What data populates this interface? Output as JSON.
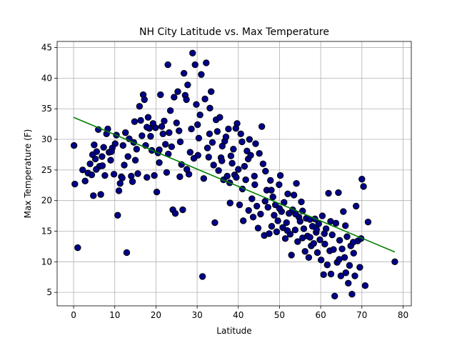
{
  "chart_data": {
    "type": "scatter",
    "title": "NH City Latitude vs. Max Temperature",
    "xlabel": "Latitude",
    "ylabel": "Max Temperature (F)",
    "xlim": [
      -4.0,
      82.0
    ],
    "ylim": [
      2.8,
      46.0
    ],
    "xticks": [
      0,
      10,
      20,
      30,
      40,
      50,
      60,
      70,
      80
    ],
    "yticks": [
      5,
      10,
      15,
      20,
      25,
      30,
      35,
      40,
      45
    ],
    "grid": true,
    "marker_color": "#00008b",
    "marker_edge": "#000000",
    "regression_color": "#008000",
    "regression": {
      "x": [
        0,
        78
      ],
      "y": [
        33.6,
        11.6
      ]
    },
    "points": [
      [
        0.1,
        29.0
      ],
      [
        0.3,
        22.7
      ],
      [
        1.0,
        12.3
      ],
      [
        2.2,
        25.0
      ],
      [
        2.8,
        23.2
      ],
      [
        3.5,
        24.5
      ],
      [
        4.0,
        26.0
      ],
      [
        4.4,
        24.2
      ],
      [
        4.6,
        27.5
      ],
      [
        4.8,
        20.8
      ],
      [
        5.0,
        29.1
      ],
      [
        5.3,
        26.8
      ],
      [
        5.6,
        28.0
      ],
      [
        6.0,
        31.6
      ],
      [
        6.3,
        25.6
      ],
      [
        6.6,
        21.0
      ],
      [
        6.9,
        27.2
      ],
      [
        7.3,
        28.7
      ],
      [
        7.6,
        24.1
      ],
      [
        8.0,
        30.9
      ],
      [
        8.3,
        31.7
      ],
      [
        8.6,
        27.9
      ],
      [
        9.0,
        26.6
      ],
      [
        9.4,
        28.6
      ],
      [
        9.8,
        24.3
      ],
      [
        10.1,
        29.3
      ],
      [
        10.4,
        30.7
      ],
      [
        10.7,
        17.6
      ],
      [
        11.0,
        21.6
      ],
      [
        11.3,
        22.8
      ],
      [
        11.6,
        23.9
      ],
      [
        12.0,
        29.0
      ],
      [
        12.3,
        25.8
      ],
      [
        12.6,
        31.1
      ],
      [
        12.9,
        11.5
      ],
      [
        13.2,
        27.2
      ],
      [
        13.5,
        30.1
      ],
      [
        14.0,
        24.0
      ],
      [
        14.3,
        23.1
      ],
      [
        14.6,
        29.5
      ],
      [
        15.0,
        26.6
      ],
      [
        15.3,
        28.4
      ],
      [
        15.6,
        24.4
      ],
      [
        16.0,
        35.4
      ],
      [
        16.3,
        33.1
      ],
      [
        16.6,
        30.6
      ],
      [
        16.9,
        37.3
      ],
      [
        17.2,
        36.5
      ],
      [
        17.5,
        29.0
      ],
      [
        17.8,
        23.8
      ],
      [
        18.1,
        33.6
      ],
      [
        18.4,
        31.8
      ],
      [
        18.7,
        30.5
      ],
      [
        19.0,
        28.2
      ],
      [
        19.3,
        32.6
      ],
      [
        19.6,
        24.1
      ],
      [
        19.9,
        31.9
      ],
      [
        20.2,
        21.4
      ],
      [
        20.5,
        27.8
      ],
      [
        20.8,
        28.3
      ],
      [
        21.1,
        37.3
      ],
      [
        21.4,
        32.1
      ],
      [
        21.7,
        30.9
      ],
      [
        22.0,
        33.0
      ],
      [
        22.3,
        29.2
      ],
      [
        22.6,
        24.6
      ],
      [
        22.9,
        42.2
      ],
      [
        23.2,
        31.1
      ],
      [
        23.5,
        34.7
      ],
      [
        23.8,
        28.8
      ],
      [
        24.1,
        18.5
      ],
      [
        24.4,
        36.9
      ],
      [
        24.7,
        17.9
      ],
      [
        25.0,
        32.7
      ],
      [
        25.3,
        37.8
      ],
      [
        25.6,
        31.4
      ],
      [
        25.9,
        29.6
      ],
      [
        26.2,
        25.9
      ],
      [
        26.5,
        18.5
      ],
      [
        26.8,
        40.8
      ],
      [
        27.1,
        37.2
      ],
      [
        27.4,
        36.5
      ],
      [
        27.7,
        38.9
      ],
      [
        28.0,
        24.3
      ],
      [
        28.3,
        27.9
      ],
      [
        28.6,
        31.7
      ],
      [
        28.9,
        44.1
      ],
      [
        29.2,
        26.9
      ],
      [
        29.5,
        42.2
      ],
      [
        29.8,
        35.7
      ],
      [
        30.1,
        32.4
      ],
      [
        30.4,
        30.2
      ],
      [
        30.7,
        34.0
      ],
      [
        31.0,
        40.6
      ],
      [
        31.3,
        7.6
      ],
      [
        31.6,
        23.6
      ],
      [
        31.9,
        36.6
      ],
      [
        32.2,
        42.5
      ],
      [
        32.5,
        28.6
      ],
      [
        32.8,
        27.1
      ],
      [
        33.1,
        35.1
      ],
      [
        33.4,
        37.8
      ],
      [
        33.7,
        29.5
      ],
      [
        34.0,
        25.8
      ],
      [
        34.3,
        16.4
      ],
      [
        34.6,
        33.2
      ],
      [
        34.9,
        31.3
      ],
      [
        35.2,
        24.9
      ],
      [
        35.5,
        33.6
      ],
      [
        35.8,
        27.0
      ],
      [
        36.1,
        28.9
      ],
      [
        36.4,
        23.4
      ],
      [
        36.7,
        29.7
      ],
      [
        37.0,
        30.4
      ],
      [
        37.3,
        24.0
      ],
      [
        37.6,
        31.7
      ],
      [
        37.9,
        22.9
      ],
      [
        38.2,
        27.3
      ],
      [
        38.5,
        26.1
      ],
      [
        38.8,
        28.4
      ],
      [
        39.1,
        24.2
      ],
      [
        39.4,
        31.8
      ],
      [
        39.7,
        32.6
      ],
      [
        40.0,
        25.1
      ],
      [
        40.3,
        19.3
      ],
      [
        40.6,
        30.9
      ],
      [
        40.9,
        29.6
      ],
      [
        41.2,
        16.7
      ],
      [
        41.5,
        25.6
      ],
      [
        41.8,
        23.4
      ],
      [
        42.1,
        28.1
      ],
      [
        42.4,
        26.8
      ],
      [
        42.7,
        30.0
      ],
      [
        43.0,
        27.4
      ],
      [
        43.3,
        20.3
      ],
      [
        43.6,
        17.3
      ],
      [
        43.9,
        24.0
      ],
      [
        44.2,
        29.3
      ],
      [
        44.5,
        19.1
      ],
      [
        44.8,
        15.5
      ],
      [
        45.1,
        27.7
      ],
      [
        45.4,
        17.8
      ],
      [
        45.7,
        32.1
      ],
      [
        46.0,
        26.0
      ],
      [
        46.3,
        14.3
      ],
      [
        46.6,
        24.8
      ],
      [
        46.9,
        21.7
      ],
      [
        47.2,
        18.9
      ],
      [
        47.5,
        14.6
      ],
      [
        47.8,
        23.3
      ],
      [
        48.1,
        15.8
      ],
      [
        48.4,
        20.6
      ],
      [
        48.7,
        17.6
      ],
      [
        49.0,
        19.3
      ],
      [
        49.3,
        14.9
      ],
      [
        49.6,
        16.7
      ],
      [
        49.9,
        22.6
      ],
      [
        50.2,
        24.1
      ],
      [
        50.5,
        18.2
      ],
      [
        50.8,
        15.6
      ],
      [
        51.1,
        19.7
      ],
      [
        51.4,
        13.8
      ],
      [
        51.7,
        16.4
      ],
      [
        52.0,
        21.1
      ],
      [
        52.3,
        17.9
      ],
      [
        52.6,
        14.5
      ],
      [
        52.9,
        11.1
      ],
      [
        53.2,
        18.5
      ],
      [
        53.5,
        20.9
      ],
      [
        53.8,
        15.2
      ],
      [
        54.1,
        22.8
      ],
      [
        54.4,
        13.3
      ],
      [
        54.7,
        17.3
      ],
      [
        55.0,
        16.6
      ],
      [
        55.3,
        19.8
      ],
      [
        55.6,
        13.9
      ],
      [
        55.9,
        15.4
      ],
      [
        56.2,
        11.7
      ],
      [
        56.5,
        17.1
      ],
      [
        56.8,
        14.2
      ],
      [
        57.1,
        10.7
      ],
      [
        57.4,
        16.9
      ],
      [
        57.7,
        12.6
      ],
      [
        58.0,
        15.8
      ],
      [
        58.3,
        13.0
      ],
      [
        58.6,
        17.0
      ],
      [
        58.9,
        14.8
      ],
      [
        59.2,
        11.5
      ],
      [
        59.5,
        16.2
      ],
      [
        59.8,
        13.6
      ],
      [
        60.1,
        10.3
      ],
      [
        60.4,
        17.5
      ],
      [
        60.7,
        7.9
      ],
      [
        61.0,
        12.9
      ],
      [
        61.3,
        15.4
      ],
      [
        61.6,
        9.5
      ],
      [
        61.9,
        21.2
      ],
      [
        62.2,
        11.8
      ],
      [
        62.5,
        8.0
      ],
      [
        62.8,
        14.4
      ],
      [
        63.1,
        12.0
      ],
      [
        63.4,
        4.4
      ],
      [
        63.7,
        16.3
      ],
      [
        64.0,
        9.9
      ],
      [
        64.3,
        21.3
      ],
      [
        64.6,
        13.5
      ],
      [
        64.9,
        7.7
      ],
      [
        65.2,
        12.1
      ],
      [
        65.5,
        18.2
      ],
      [
        65.8,
        10.7
      ],
      [
        66.1,
        8.2
      ],
      [
        66.4,
        14.1
      ],
      [
        66.7,
        6.5
      ],
      [
        67.0,
        9.4
      ],
      [
        67.3,
        12.6
      ],
      [
        67.6,
        4.7
      ],
      [
        68.0,
        11.4
      ],
      [
        68.3,
        7.7
      ],
      [
        68.6,
        19.1
      ],
      [
        69.0,
        13.4
      ],
      [
        69.5,
        9.1
      ],
      [
        70.0,
        23.5
      ],
      [
        70.4,
        22.3
      ],
      [
        70.8,
        6.1
      ],
      [
        71.5,
        16.5
      ],
      [
        78.0,
        10.0
      ],
      [
        5.5,
        25.1
      ],
      [
        7.0,
        25.7
      ],
      [
        9.2,
        28.0
      ],
      [
        11.8,
        23.7
      ],
      [
        14.8,
        32.9
      ],
      [
        17.8,
        32.0
      ],
      [
        20.8,
        26.2
      ],
      [
        23.0,
        27.6
      ],
      [
        25.8,
        23.9
      ],
      [
        27.5,
        25.1
      ],
      [
        30.2,
        27.4
      ],
      [
        33.0,
        30.9
      ],
      [
        36.0,
        26.5
      ],
      [
        38.0,
        19.6
      ],
      [
        39.5,
        23.8
      ],
      [
        41.0,
        21.9
      ],
      [
        42.5,
        18.4
      ],
      [
        44.0,
        22.6
      ],
      [
        46.5,
        19.9
      ],
      [
        48.0,
        21.7
      ],
      [
        50.0,
        18.7
      ],
      [
        51.9,
        15.1
      ],
      [
        53.9,
        17.8
      ],
      [
        55.6,
        18.3
      ],
      [
        57.4,
        14.0
      ],
      [
        59.0,
        15.3
      ],
      [
        60.9,
        14.6
      ],
      [
        62.4,
        16.6
      ],
      [
        64.5,
        10.4
      ],
      [
        66.0,
        15.9
      ],
      [
        67.9,
        13.2
      ],
      [
        69.8,
        13.8
      ]
    ]
  }
}
